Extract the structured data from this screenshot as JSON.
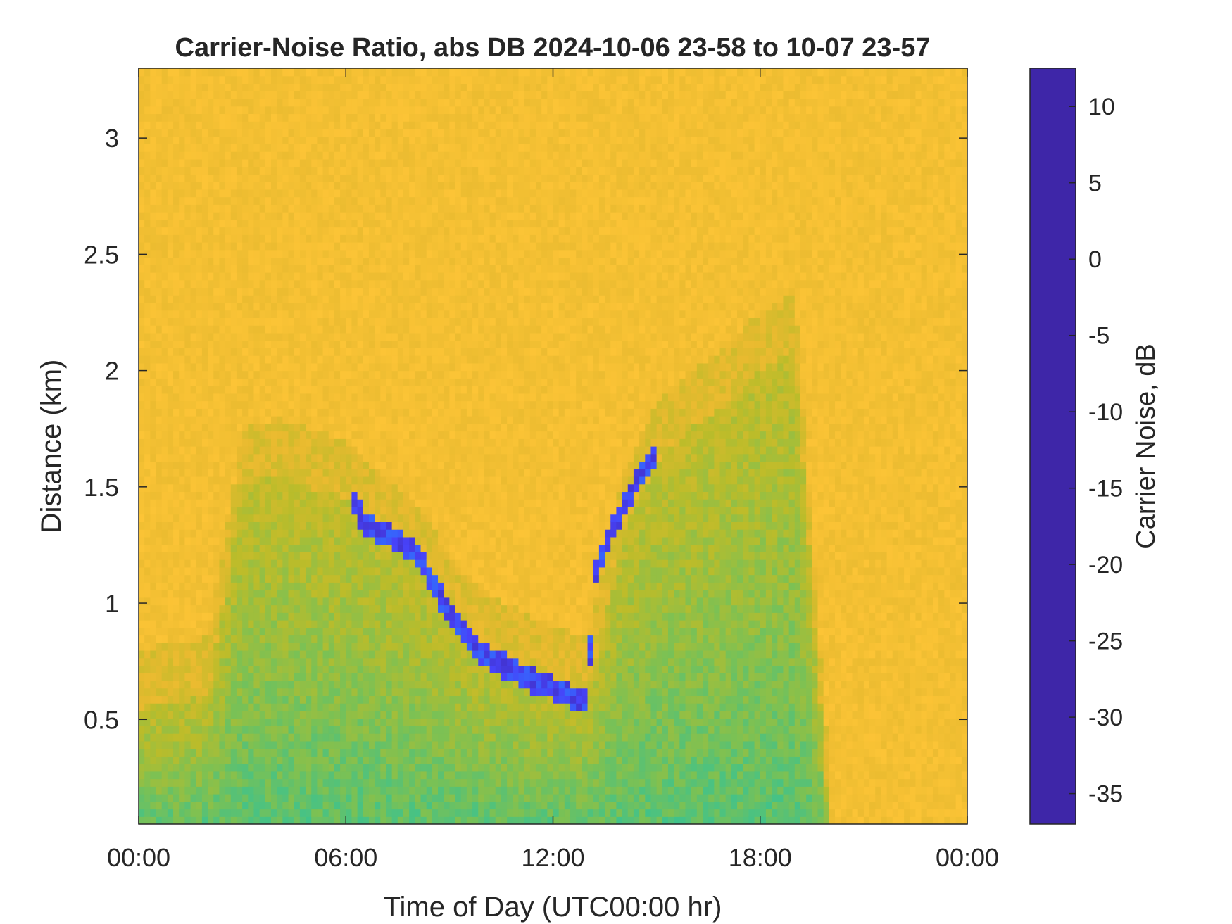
{
  "chart_data": {
    "type": "heatmap",
    "title": "Carrier-Noise Ratio, abs DB 2024-10-06 23-58 to 10-07 23-57",
    "xlabel": "Time of Day (UTC00:00 hr)",
    "ylabel": "Distance (km)",
    "colorbar_label": "Carrier Noise, dB",
    "xlim": [
      0,
      24
    ],
    "ylim": [
      0.05,
      3.3
    ],
    "clim": [
      -37,
      12.5
    ],
    "x_ticks": [
      0,
      6,
      12,
      18,
      24
    ],
    "x_tick_labels": [
      "00:00",
      "06:00",
      "12:00",
      "18:00",
      "00:00"
    ],
    "y_ticks": [
      0.5,
      1,
      1.5,
      2,
      2.5,
      3
    ],
    "y_tick_labels": [
      "0.5",
      "1",
      "1.5",
      "2",
      "2.5",
      "3"
    ],
    "colorbar_ticks": [
      10,
      5,
      0,
      -5,
      -10,
      -15,
      -20,
      -25,
      -30,
      -35
    ],
    "colorbar_tick_labels": [
      "10",
      "5",
      "0",
      "-5",
      "-10",
      "-15",
      "-20",
      "-25",
      "-30",
      "-35"
    ],
    "colormap": [
      "#3e26a8",
      "#4743f9",
      "#2f74fc",
      "#1a9ae5",
      "#08b3c7",
      "#2fc29b",
      "#7ac155",
      "#bbbc2a",
      "#e8ba2f",
      "#fcc436",
      "#f9fb15"
    ],
    "background_value_db": -30,
    "boundary_layer_top_km": {
      "hours": [
        0,
        1,
        2,
        3,
        4,
        5,
        6,
        7,
        8,
        9,
        10,
        11,
        12,
        13,
        14,
        15,
        16,
        17,
        18,
        19,
        20,
        21,
        22,
        24
      ],
      "km": [
        0.55,
        0.58,
        0.6,
        1.5,
        1.55,
        1.5,
        1.45,
        1.3,
        1.2,
        0.95,
        0.8,
        0.72,
        0.65,
        0.6,
        1.3,
        1.6,
        1.75,
        1.85,
        2.0,
        2.1,
        0.05,
        0.05,
        0.05,
        0.05
      ]
    },
    "cloud_base_layer_km": {
      "hours": [
        6.1,
        6.5,
        7.0,
        7.5,
        8.0,
        8.5,
        9.0,
        9.5,
        10.0,
        10.5,
        11.0,
        11.5,
        12.0,
        12.5,
        13.0,
        13.2,
        13.5,
        14.0,
        14.5,
        15.0
      ],
      "km": [
        1.5,
        1.35,
        1.3,
        1.28,
        1.22,
        1.1,
        0.95,
        0.85,
        0.78,
        0.74,
        0.7,
        0.66,
        0.64,
        0.6,
        0.58,
        1.1,
        1.25,
        1.4,
        1.55,
        1.65
      ],
      "value_db": 10
    }
  }
}
